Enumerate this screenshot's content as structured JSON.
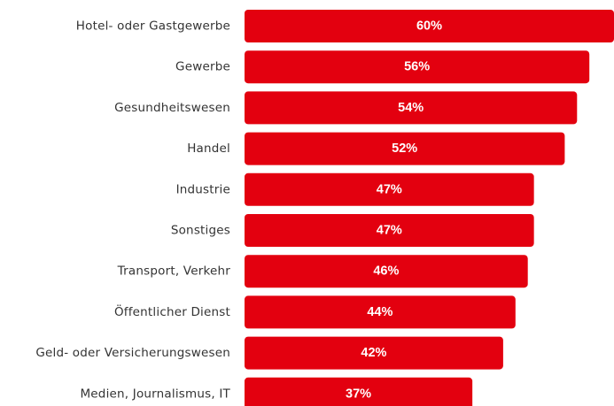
{
  "chart_data": {
    "type": "bar",
    "orientation": "horizontal",
    "categories": [
      "Hotel- oder Gastgewerbe",
      "Gewerbe",
      "Gesundheitswesen",
      "Handel",
      "Industrie",
      "Sonstiges",
      "Transport, Verkehr",
      "Öffentlicher Dienst",
      "Geld- oder Versicherungswesen",
      "Medien, Journalismus, IT"
    ],
    "values": [
      60,
      56,
      54,
      52,
      47,
      47,
      46,
      44,
      42,
      37
    ],
    "value_labels": [
      "60%",
      "56%",
      "54%",
      "52%",
      "47%",
      "47%",
      "46%",
      "44%",
      "42%",
      "37%"
    ],
    "bar_color": "#e3000f",
    "xlim": [
      0,
      60
    ],
    "grid": false,
    "legend": "none"
  }
}
